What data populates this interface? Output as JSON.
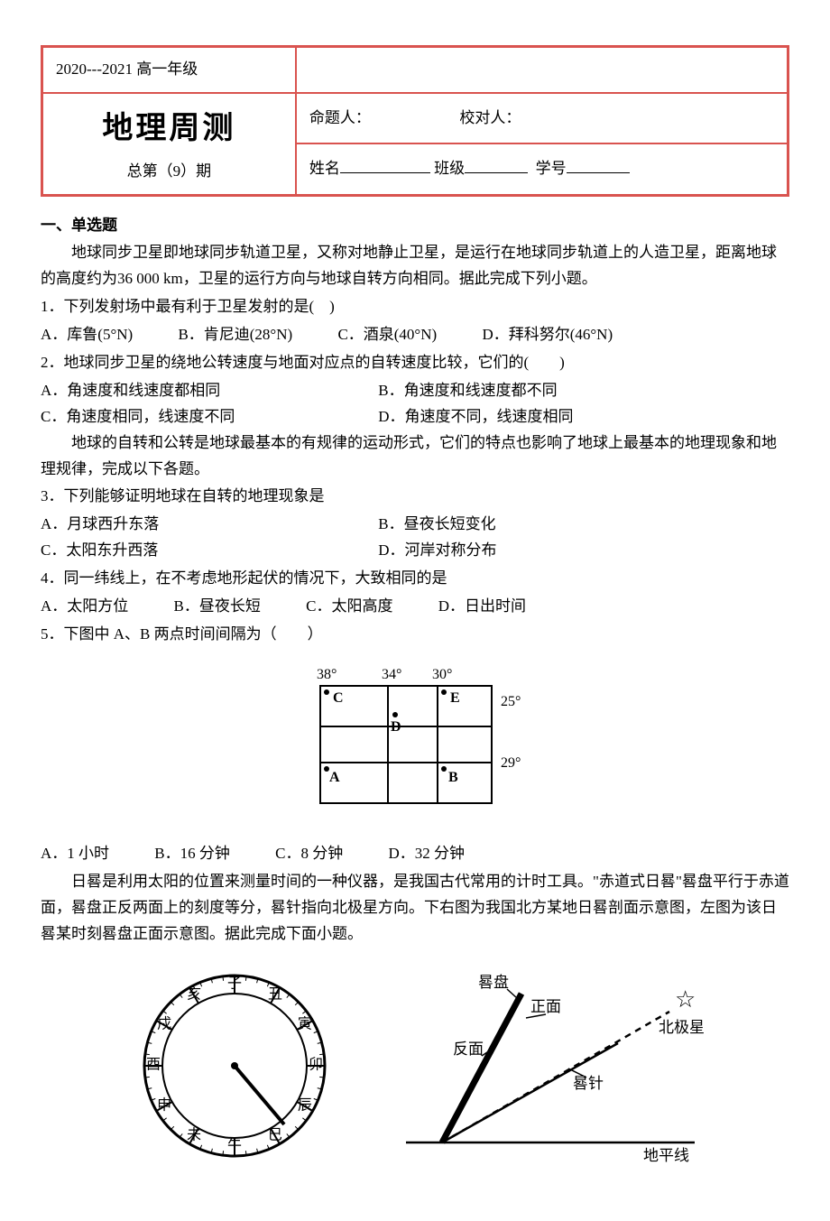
{
  "header": {
    "grade": "2020---2021 高一年级",
    "title": "地理周测",
    "issue": "总第（9）期",
    "author_label": "命题人：",
    "checker_label": "校对人：",
    "name_label": "姓名",
    "class_label": "班级",
    "id_label": "学号"
  },
  "section1_title": "一、单选题",
  "intro1": "地球同步卫星即地球同步轨道卫星，又称对地静止卫星，是运行在地球同步轨道上的人造卫星，距离地球的高度约为36 000 km，卫星的运行方向与地球自转方向相同。据此完成下列小题。",
  "q1": {
    "stem": "1．下列发射场中最有利于卫星发射的是(　)",
    "A": "A．库鲁(5°N)",
    "B": "B．肯尼迪(28°N)",
    "C": "C．酒泉(40°N)",
    "D": "D．拜科努尔(46°N)"
  },
  "q2": {
    "stem": "2．地球同步卫星的绕地公转速度与地面对应点的自转速度比较，它们的(　　)",
    "A": "A．角速度和线速度都相同",
    "B": "B．角速度和线速度都不同",
    "C": "C．角速度相同，线速度不同",
    "D": "D．角速度不同，线速度相同"
  },
  "intro2": "地球的自转和公转是地球最基本的有规律的运动形式，它们的特点也影响了地球上最基本的地理现象和地理规律，完成以下各题。",
  "q3": {
    "stem": "3．下列能够证明地球在自转的地理现象是",
    "A": "A．月球西升东落",
    "B": "B．昼夜长短变化",
    "C": "C．太阳东升西落",
    "D": "D．河岸对称分布"
  },
  "q4": {
    "stem": "4．同一纬线上，在不考虑地形起伏的情况下，大致相同的是",
    "A": "A．太阳方位",
    "B": "B．昼夜长短",
    "C": "C．太阳高度",
    "D": "D．日出时间"
  },
  "q5": {
    "stem": "5．下图中 A、B 两点时间间隔为（　　）",
    "A": "A．1 小时",
    "B": "B．16 分钟",
    "C": "C．8 分钟",
    "D": "D．32 分钟",
    "grid": {
      "lons": [
        "38°",
        "34°",
        "30°"
      ],
      "lats": [
        "25°",
        "29°"
      ],
      "points": {
        "C": "C",
        "D": "D",
        "E": "E",
        "A": "A",
        "B": "B"
      },
      "line_color": "#000000",
      "line_width": 2,
      "font_size": 16
    }
  },
  "intro3": "日晷是利用太阳的位置来测量时间的一种仪器，是我国古代常用的计时工具。\"赤道式日晷\"晷盘平行于赤道面，晷盘正反两面上的刻度等分，晷针指向北极星方向。下右图为我国北方某地日晷剖面示意图，左图为该日晷某时刻晷盘正面示意图。据此完成下面小题。",
  "sundial": {
    "dial_labels": [
      "子",
      "丑",
      "寅",
      "卯",
      "辰",
      "巳",
      "午",
      "未",
      "申",
      "酉",
      "戌",
      "亥"
    ],
    "section_labels": {
      "disk": "晷盘",
      "front": "正面",
      "back": "反面",
      "needle": "晷针",
      "horizon": "地平线",
      "polaris": "北极星"
    },
    "colors": {
      "stroke": "#000000",
      "fill": "#ffffff"
    }
  }
}
